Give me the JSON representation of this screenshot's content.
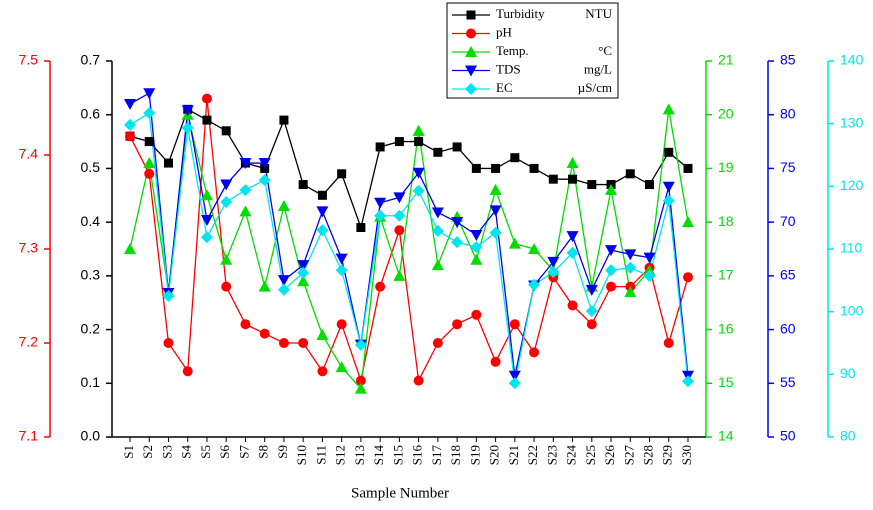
{
  "chart_data": {
    "type": "line",
    "xlabel": "Sample Number",
    "legend": "top",
    "categories": [
      "S1",
      "S2",
      "S3",
      "S4",
      "S5",
      "S6",
      "S7",
      "S8",
      "S9",
      "S10",
      "S11",
      "S12",
      "S13",
      "S14",
      "S15",
      "S16",
      "S17",
      "S18",
      "S19",
      "S20",
      "S21",
      "S22",
      "S23",
      "S24",
      "S25",
      "S26",
      "S27",
      "S28",
      "S29",
      "S30"
    ],
    "ylim": [
      0,
      0.7
    ],
    "yticks": [
      {
        "value": 0,
        "label": "0.0"
      },
      0.1,
      0.2,
      0.3,
      0.4,
      0.5,
      0.6,
      0.7
    ],
    "y2lim": [
      7.1,
      7.5
    ],
    "y2ticks": [
      7.1,
      7.2,
      7.3,
      7.4,
      7.5
    ],
    "y3lim": [
      14,
      21
    ],
    "y3ticks": [
      14,
      15,
      16,
      17,
      18,
      19,
      20,
      21
    ],
    "y4lim": [
      50,
      85
    ],
    "y4ticks": [
      50,
      55,
      60,
      65,
      70,
      75,
      80,
      85
    ],
    "y5lim": [
      80,
      140
    ],
    "y5ticks": [
      80,
      90,
      100,
      110,
      120,
      130,
      140
    ],
    "series": [
      {
        "name": "Turbidity",
        "unit": "NTU",
        "color": "#000000",
        "marker": "square",
        "axis": "y",
        "values": [
          0.56,
          0.55,
          0.51,
          0.61,
          0.59,
          0.57,
          0.51,
          0.5,
          0.59,
          0.47,
          0.45,
          0.49,
          0.39,
          0.54,
          0.55,
          0.55,
          0.53,
          0.54,
          0.5,
          0.5,
          0.52,
          0.5,
          0.48,
          0.48,
          0.47,
          0.47,
          0.49,
          0.47,
          0.53,
          0.5
        ]
      },
      {
        "name": "pH",
        "color": "#ff0000",
        "marker": "circle",
        "axis": "y2",
        "values": [
          7.42,
          7.38,
          7.2,
          7.17,
          7.46,
          7.26,
          7.22,
          7.21,
          7.2,
          7.2,
          7.17,
          7.22,
          7.16,
          7.26,
          7.32,
          7.16,
          7.2,
          7.22,
          7.23,
          7.18,
          7.22,
          7.19,
          7.27,
          7.24,
          7.22,
          7.26,
          7.26,
          7.28,
          7.2,
          7.27
        ]
      },
      {
        "name": "Temp.",
        "unit": "°C",
        "color": "#00dd00",
        "marker": "triangle-up",
        "axis": "y3",
        "values": [
          17.5,
          19.1,
          16.7,
          20.0,
          18.5,
          17.3,
          18.2,
          16.8,
          18.3,
          16.9,
          15.9,
          15.3,
          14.9,
          18.1,
          17.0,
          19.7,
          17.2,
          18.1,
          17.3,
          18.6,
          17.6,
          17.5,
          17.1,
          19.1,
          16.8,
          18.6,
          16.7,
          17.1,
          20.1,
          18.0
        ]
      },
      {
        "name": "TDS",
        "unit": "mg/L",
        "color": "#0000ee",
        "marker": "triangle-down",
        "axis": "y4",
        "values": [
          81,
          82,
          63.4,
          80.4,
          70.2,
          73.5,
          75.5,
          75.5,
          64.6,
          66,
          71,
          66.6,
          58.6,
          71.8,
          72.3,
          74.6,
          70.9,
          70,
          68.8,
          71.1,
          55.7,
          64.1,
          66.3,
          68.7,
          63.7,
          67.4,
          67,
          66.7,
          73.3,
          55.7
        ]
      },
      {
        "name": "EC",
        "unit": "µS/cm",
        "color": "#00e5ee",
        "marker": "diamond",
        "axis": "y5",
        "values": [
          129.8,
          131.7,
          102.5,
          129.3,
          111.9,
          117.5,
          119.4,
          121,
          103.5,
          106.2,
          113,
          106.6,
          94.7,
          115.3,
          115.3,
          119.3,
          112.9,
          111.1,
          110.3,
          112.6,
          88.6,
          104.3,
          106.3,
          109.4,
          100.1,
          106.6,
          107,
          105.7,
          117.7,
          88.9
        ]
      }
    ]
  }
}
